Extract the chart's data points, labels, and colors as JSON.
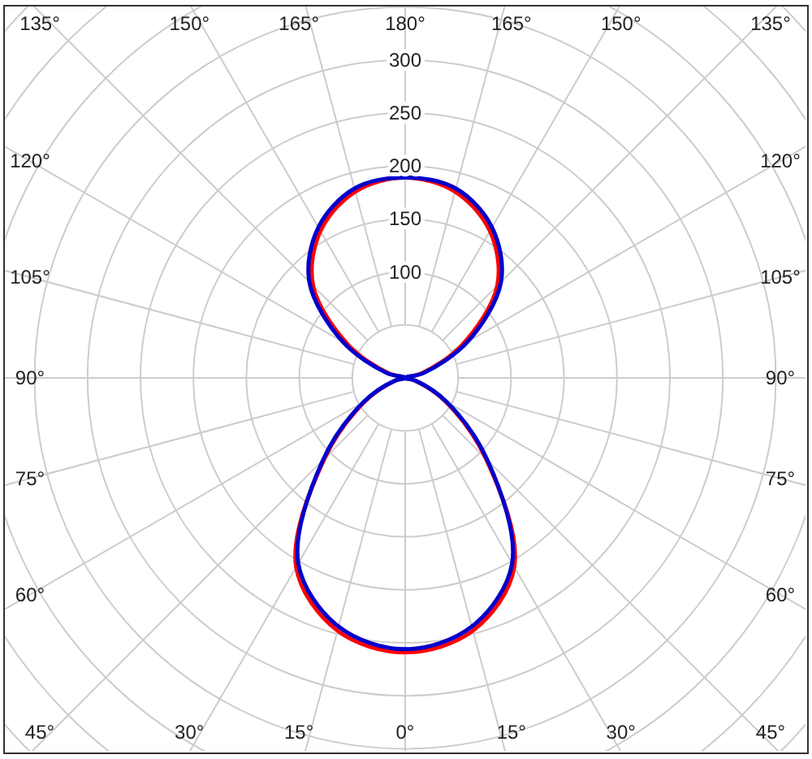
{
  "chart_data": {
    "type": "radar",
    "categories": [
      "180°",
      "165°",
      "150°",
      "135°",
      "120°",
      "105°",
      "90°",
      "75°",
      "60°",
      "45°",
      "30°",
      "15°",
      "0°",
      "15°",
      "30°",
      "45°",
      "60°",
      "75°",
      "90°",
      "105°",
      "120°",
      "135°",
      "150°",
      "165°"
    ],
    "series": [
      {
        "color": "#ff0000",
        "values": [
          189,
          182,
          160,
          123,
          62,
          16,
          0,
          9,
          43,
          108,
          206,
          247,
          259,
          247,
          206,
          108,
          43,
          9,
          0,
          16,
          62,
          123,
          160,
          182
        ]
      },
      {
        "color": "#0000cc",
        "values": [
          189,
          185,
          164,
          128,
          68,
          18,
          0,
          10,
          45,
          110,
          202,
          243,
          256,
          243,
          202,
          110,
          45,
          10,
          0,
          18,
          68,
          128,
          164,
          185
        ]
      }
    ],
    "ylim": [
      0,
      500
    ],
    "yticks": [
      100,
      150,
      200,
      250,
      300
    ],
    "grid": true
  }
}
